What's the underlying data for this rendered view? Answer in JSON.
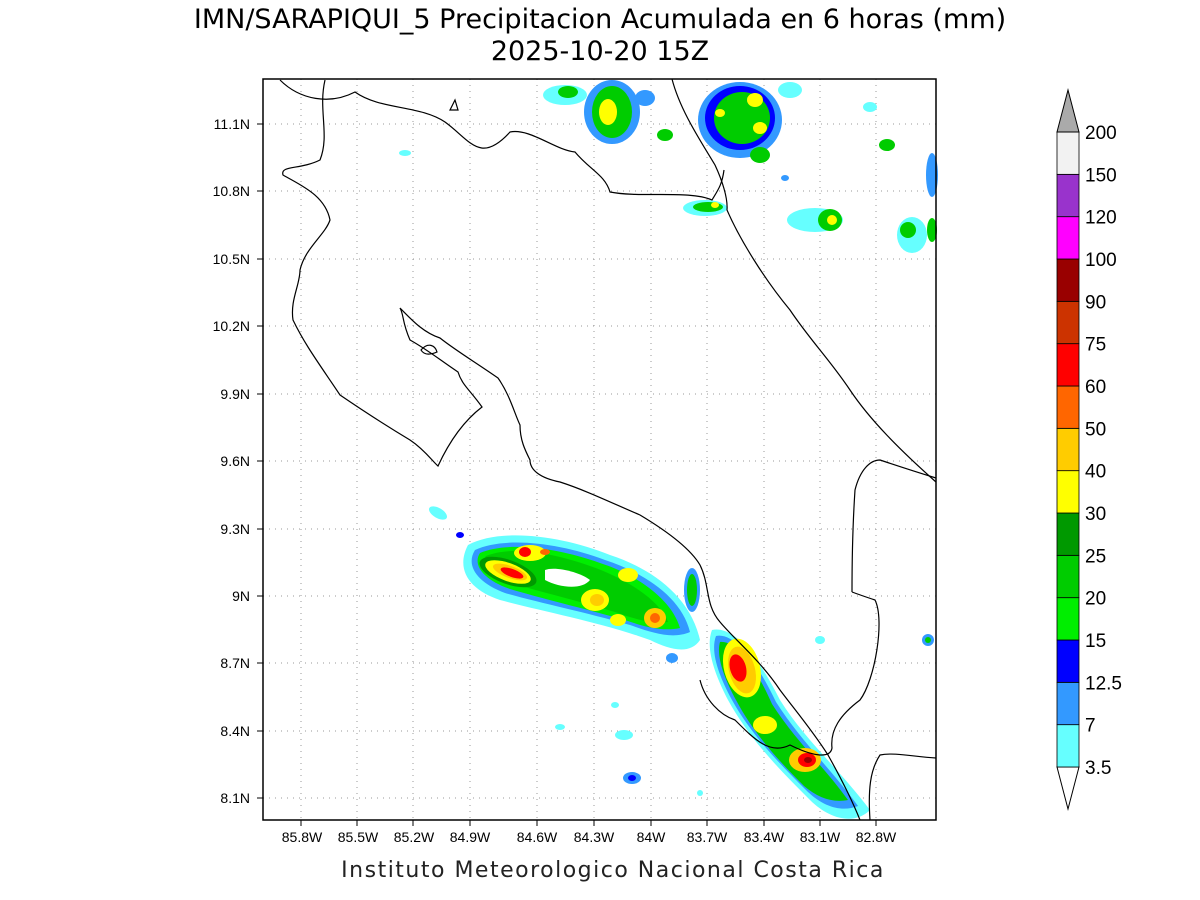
{
  "title_line1": "IMN/SARAPIQUI_5 Precipitacion Acumulada en 6 horas (mm)",
  "title_line2": "2025-10-20 15Z",
  "footer": "Instituto Meteorologico Nacional Costa Rica",
  "lon_labels": [
    "85.8W",
    "85.5W",
    "85.2W",
    "84.9W",
    "84.6W",
    "84.3W",
    "84W",
    "83.7W",
    "83.4W",
    "83.1W",
    "82.8W"
  ],
  "lat_labels": [
    "11.1N",
    "10.8N",
    "10.5N",
    "10.2N",
    "9.9N",
    "9.6N",
    "9.3N",
    "9N",
    "8.7N",
    "8.4N",
    "8.1N"
  ],
  "colorbar": {
    "levels": [
      "3.5",
      "7",
      "12.5",
      "15",
      "20",
      "25",
      "30",
      "40",
      "50",
      "60",
      "75",
      "90",
      "100",
      "120",
      "150",
      "200"
    ],
    "colors": [
      "#66ffff",
      "#3399ff",
      "#0000ff",
      "#00ee00",
      "#00cc00",
      "#009900",
      "#ffff00",
      "#ffcc00",
      "#ff6600",
      "#ff0000",
      "#cc3300",
      "#990000",
      "#ff00ff",
      "#9933cc",
      "#f2f2f2",
      "#aaaaaa"
    ]
  }
}
